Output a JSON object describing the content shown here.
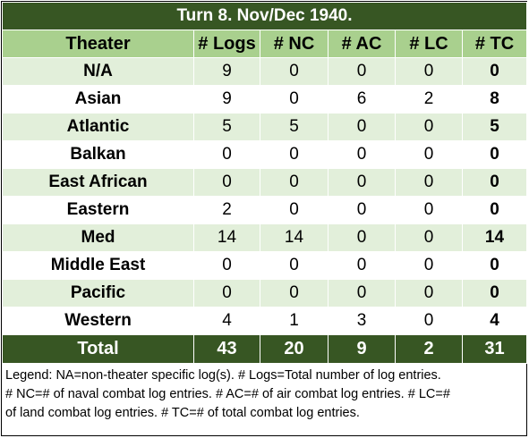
{
  "header": {
    "title": "Turn 8.  Nov/Dec 1940."
  },
  "table": {
    "columns": [
      "Theater",
      "# Logs",
      "# NC",
      "# AC",
      "# LC",
      "# TC"
    ],
    "rows": [
      [
        "N/A",
        9,
        0,
        0,
        0,
        0
      ],
      [
        "Asian",
        9,
        0,
        6,
        2,
        8
      ],
      [
        "Atlantic",
        5,
        5,
        0,
        0,
        5
      ],
      [
        "Balkan",
        0,
        0,
        0,
        0,
        0
      ],
      [
        "East African",
        0,
        0,
        0,
        0,
        0
      ],
      [
        "Eastern",
        2,
        0,
        0,
        0,
        0
      ],
      [
        "Med",
        14,
        14,
        0,
        0,
        14
      ],
      [
        "Middle East",
        0,
        0,
        0,
        0,
        0
      ],
      [
        "Pacific",
        0,
        0,
        0,
        0,
        0
      ],
      [
        "Western",
        4,
        1,
        3,
        0,
        4
      ]
    ],
    "total": [
      "Total",
      43,
      20,
      9,
      2,
      31
    ]
  },
  "legend": [
    "Legend:  NA=non-theater specific log(s).  # Logs=Total number of log entries.",
    "# NC=# of naval combat log entries.  # AC=# of air combat log entries.  # LC=#",
    "of land combat log entries.  # TC=# of total combat log entries."
  ]
}
